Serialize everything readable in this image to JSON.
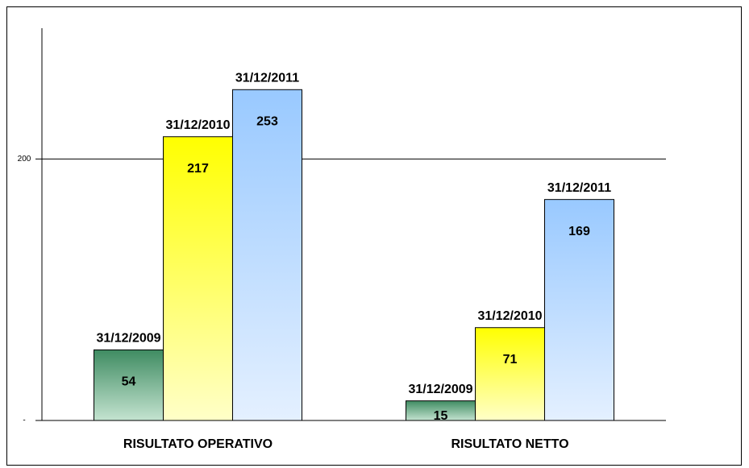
{
  "chart_data": {
    "type": "bar",
    "categories": [
      "RISULTATO OPERATIVO",
      "RISULTATO NETTO"
    ],
    "series": [
      {
        "name": "31/12/2009",
        "color": "#3f8c62",
        "values": [
          54,
          15
        ]
      },
      {
        "name": "31/12/2010",
        "color": "#ffff00",
        "values": [
          217,
          71
        ]
      },
      {
        "name": "31/12/2011",
        "color": "#99c9ff",
        "values": [
          253,
          169
        ]
      }
    ],
    "ylim": [
      0,
      300
    ],
    "yticks": [
      {
        "value": 0,
        "label": "-"
      },
      200
    ],
    "grid": true
  }
}
